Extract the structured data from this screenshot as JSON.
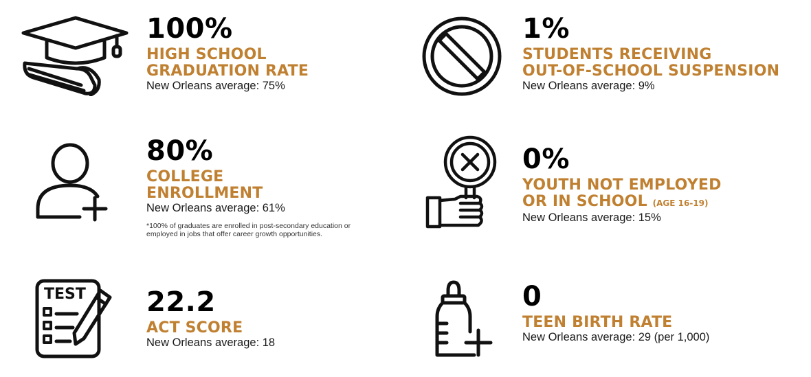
{
  "colors": {
    "accent": "#c08031",
    "value": "#000000",
    "icon": "#111111"
  },
  "stats": [
    {
      "icon": "graduation-cap-icon",
      "value": "100%",
      "label_lines": [
        "HIGH SCHOOL",
        "GRADUATION RATE"
      ],
      "avg": "New Orleans average: 75%"
    },
    {
      "icon": "prohibited-icon",
      "value": "1%",
      "label_lines": [
        "STUDENTS RECEIVING",
        "OUT-OF-SCHOOL SUSPENSION"
      ],
      "avg": "New Orleans average: 9%"
    },
    {
      "icon": "user-add-icon",
      "value": "80%",
      "label_lines": [
        "COLLEGE",
        "ENROLLMENT"
      ],
      "avg": "New Orleans average: 61%",
      "note": "*100% of graduates are enrolled in post-secondary education or employed in jobs that offer career growth opportunities."
    },
    {
      "icon": "hand-reject-sign-icon",
      "value": "0%",
      "label_lines": [
        "YOUTH NOT EMPLOYED",
        "OR IN SCHOOL"
      ],
      "label_suffix": "(AGE 16-19)",
      "avg": "New Orleans average: 15%"
    },
    {
      "icon": "test-clipboard-icon",
      "icon_text": "TEST",
      "value": "22.2",
      "label_lines": [
        "ACT SCORE"
      ],
      "avg": "New Orleans average: 18"
    },
    {
      "icon": "baby-bottle-icon",
      "value": "0",
      "label_lines": [
        "TEEN BIRTH RATE"
      ],
      "avg": "New Orleans average: 29 (per 1,000)"
    }
  ]
}
